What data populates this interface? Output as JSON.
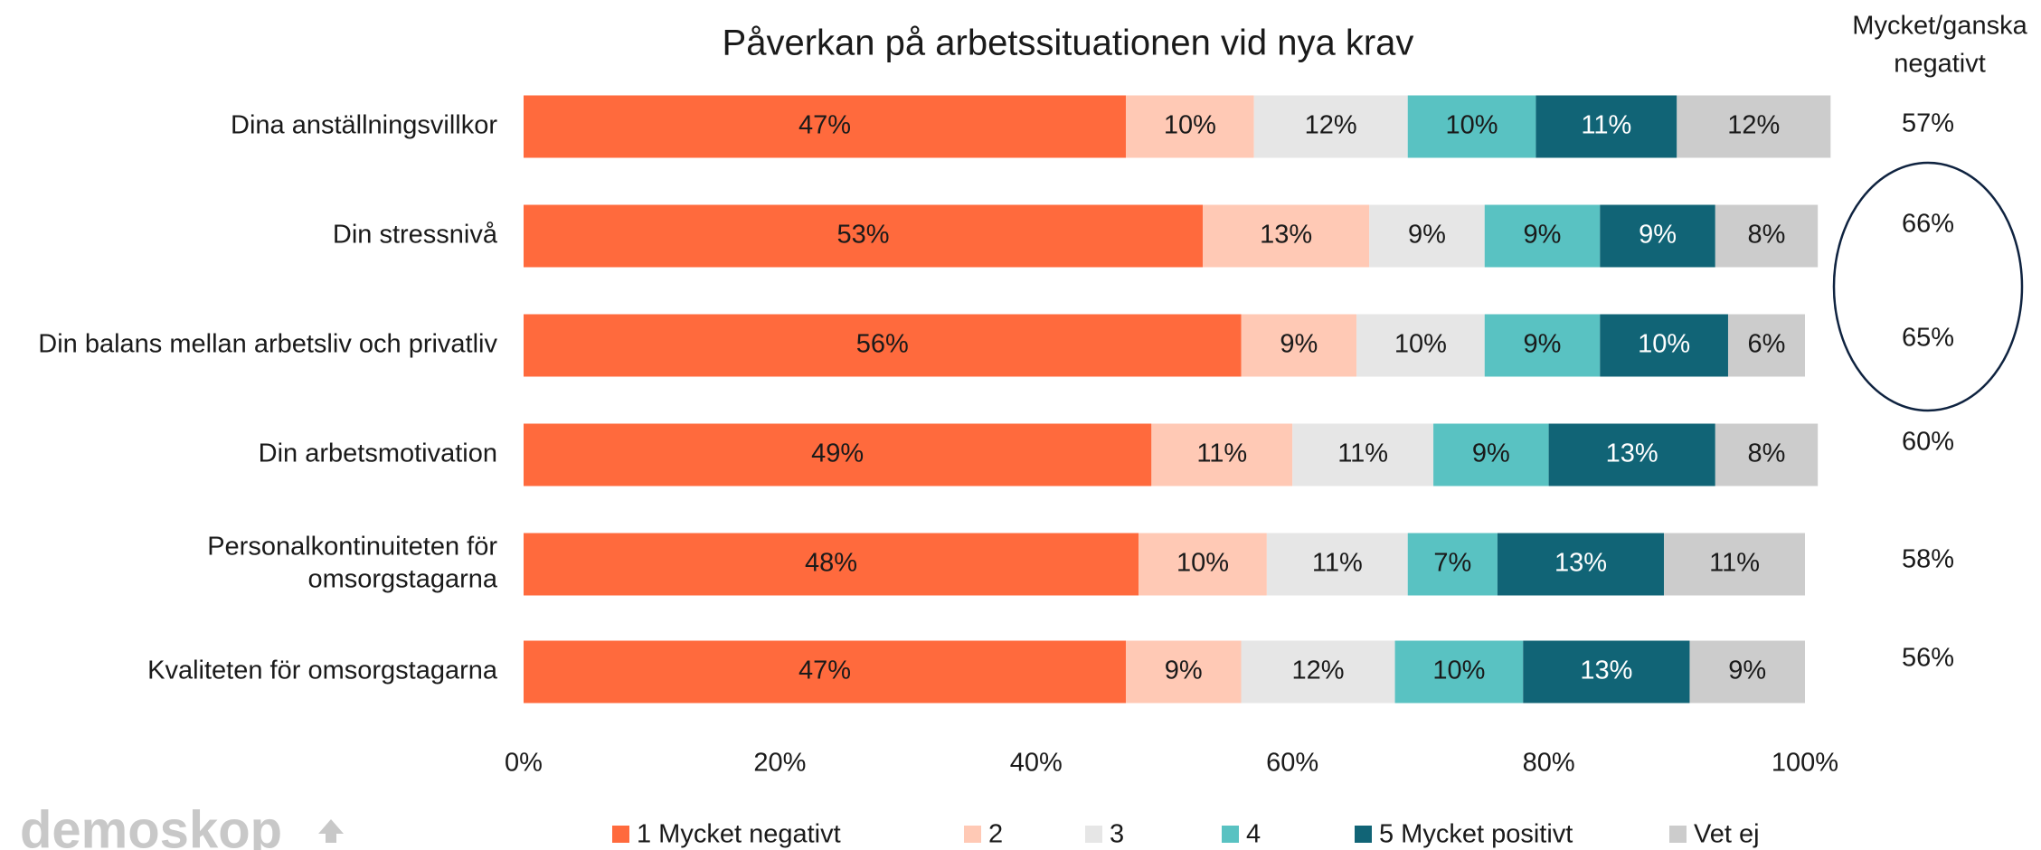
{
  "chart_data": {
    "type": "stacked_bar_horizontal",
    "title": "Påverkan på arbetssituationen vid nya krav",
    "categories": [
      "Dina anställningsvillkor",
      "Din stressnivå",
      "Din balans mellan arbetsliv och privatliv",
      "Din arbetsmotivation",
      [
        "Personalkontinuiteten för",
        "omsorgstagarna"
      ],
      "Kvaliteten för omsorgstagarna"
    ],
    "series": [
      {
        "name": "1 Mycket negativt",
        "color": "#ff6a3d",
        "values": [
          47,
          53,
          56,
          49,
          48,
          47
        ],
        "value_labels": [
          "47%",
          "53%",
          "56%",
          "49%",
          "48%",
          "47%"
        ]
      },
      {
        "name": "2",
        "color": "#ffc9b5",
        "values": [
          10,
          13,
          9,
          11,
          10,
          9
        ],
        "value_labels": [
          "10%",
          "13%",
          "9%",
          "11%",
          "10%",
          "9%"
        ]
      },
      {
        "name": "3",
        "color": "#e6e6e6",
        "values": [
          12,
          9,
          10,
          11,
          11,
          12
        ],
        "value_labels": [
          "12%",
          "9%",
          "10%",
          "11%",
          "11%",
          "12%"
        ]
      },
      {
        "name": "4",
        "color": "#59c2c2",
        "values": [
          10,
          9,
          9,
          9,
          7,
          10
        ],
        "value_labels": [
          "10%",
          "9%",
          "9%",
          "9%",
          "7%",
          "10%"
        ]
      },
      {
        "name": "5 Mycket positivt",
        "color": "#116476",
        "values": [
          11,
          9,
          10,
          13,
          13,
          13
        ],
        "value_labels": [
          "11%",
          "9%",
          "10%",
          "13%",
          "13%",
          "13%"
        ]
      },
      {
        "name": "Vet ej",
        "color": "#cccccc",
        "values": [
          12,
          8,
          6,
          8,
          11,
          9
        ],
        "value_labels": [
          "12%",
          "8%",
          "6%",
          "8%",
          "11%",
          "9%"
        ]
      }
    ],
    "xlim": [
      0,
      100
    ],
    "xticks": [
      {
        "value": 0,
        "label": "0%"
      },
      {
        "value": 20,
        "label": "20%"
      },
      {
        "value": 40,
        "label": "40%"
      },
      {
        "value": 60,
        "label": "60%"
      },
      {
        "value": 80,
        "label": "80%"
      },
      {
        "value": 100,
        "label": "100%"
      }
    ],
    "legend": "bottom",
    "side_column": {
      "title": [
        "Mycket/ganska",
        "negativt"
      ],
      "values": [
        57,
        66,
        65,
        60,
        58,
        56
      ],
      "value_labels": [
        "57%",
        "66%",
        "65%",
        "60%",
        "58%",
        "56%"
      ]
    },
    "logo": "demoskop"
  }
}
